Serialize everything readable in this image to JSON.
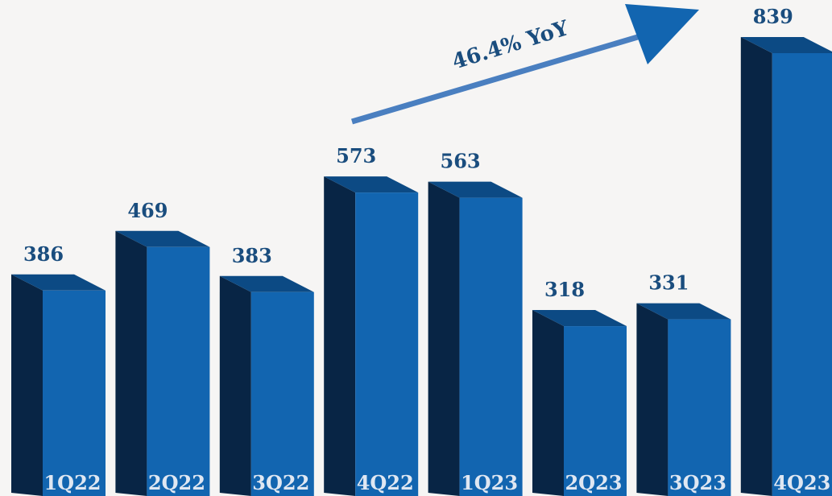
{
  "chart_data": {
    "type": "bar",
    "categories": [
      "1Q22",
      "2Q22",
      "3Q22",
      "4Q22",
      "1Q23",
      "2Q23",
      "3Q23",
      "4Q23"
    ],
    "values": [
      386,
      469,
      383,
      573,
      563,
      318,
      331,
      839
    ],
    "value_labels": [
      "386",
      "469",
      "383",
      "573",
      "563",
      "318",
      "331",
      "839"
    ],
    "annotation": "46.4% YoY",
    "title": "",
    "xlabel": "",
    "ylabel": "",
    "ylim": [
      0,
      839
    ],
    "grid": false,
    "legend": "none",
    "colors": {
      "front": "#1265b0",
      "side": "#082545",
      "top": "#0c4a84",
      "arrow": "#4a7fc0",
      "arrow_head": "#1265b0",
      "value_text": "#1a4d7e",
      "category_text": "#dfe7f2",
      "background": "#f6f5f4"
    }
  }
}
